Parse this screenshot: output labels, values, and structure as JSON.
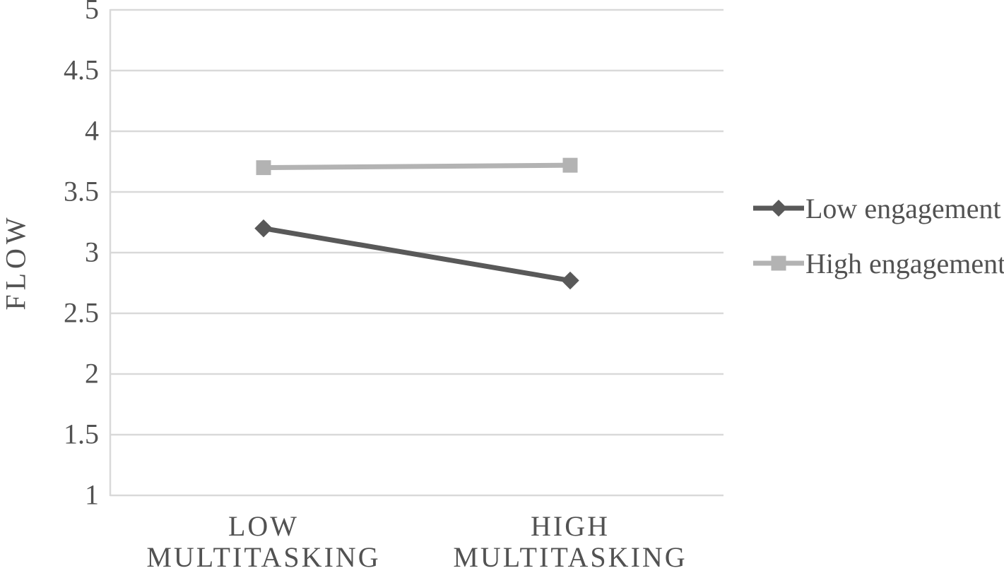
{
  "chart_data": {
    "type": "line",
    "title": "",
    "ylabel": "FLOW",
    "xlabel": "",
    "categories": [
      "LOW MULTITASKING",
      "HIGH MULTITASKING"
    ],
    "category_lines": [
      [
        "LOW",
        "MULTITASKING"
      ],
      [
        "HIGH",
        "MULTITASKING"
      ]
    ],
    "series": [
      {
        "name": "Low engagement",
        "values": [
          3.2,
          2.77
        ],
        "color": "#595959",
        "marker": "diamond"
      },
      {
        "name": "High engagement",
        "values": [
          3.7,
          3.72
        ],
        "color": "#b3b3b3",
        "marker": "square"
      }
    ],
    "ylim": [
      1,
      5
    ],
    "yticks": [
      1,
      1.5,
      2,
      2.5,
      3,
      3.5,
      4,
      4.5,
      5
    ],
    "ytick_labels": [
      "1",
      "1.5",
      "2",
      "2.5",
      "3",
      "3.5",
      "4",
      "4.5",
      "5"
    ],
    "grid": true,
    "legend_position": "right",
    "colors": {
      "gridline": "#d9d9d9",
      "axis_text": "#525252"
    }
  }
}
